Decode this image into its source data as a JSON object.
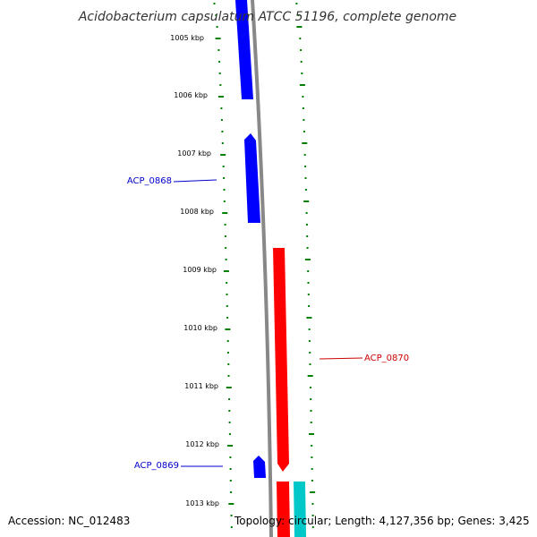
{
  "title": "Acidobacterium capsulatum ATCC 51196, complete genome",
  "accession_text": "Accession: NC_012483",
  "topology_text": "Topology: circular; Length: 4,127,356 bp; Genes: 3,425",
  "colors": {
    "forward_gene": "#ff0000",
    "reverse_gene": "#0000ff",
    "other_feature": "#00c8c8",
    "backbone": "#888888",
    "tick_marks": "#008000"
  },
  "ticks": [
    "1005 kbp",
    "1006 kbp",
    "1007 kbp",
    "1008 kbp",
    "1009 kbp",
    "1010 kbp",
    "1011 kbp",
    "1012 kbp",
    "1013 kbp"
  ],
  "gene_labels": [
    {
      "id": "ACP_0868",
      "text": "ACP_0868",
      "strand": "reverse"
    },
    {
      "id": "ACP_0869",
      "text": "ACP_0869",
      "strand": "reverse"
    },
    {
      "id": "ACP_0870",
      "text": "ACP_0870",
      "strand": "forward"
    }
  ]
}
